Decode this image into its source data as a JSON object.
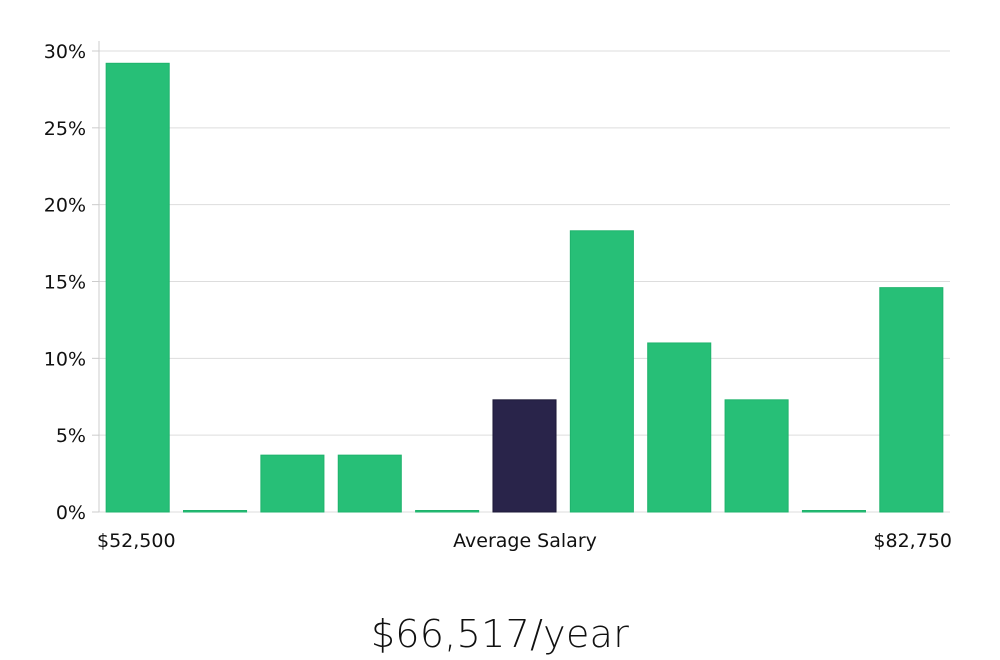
{
  "chart_data": {
    "type": "bar",
    "title": "",
    "xlabel": "",
    "ylabel": "",
    "ylim": [
      0,
      30
    ],
    "yticks": [
      0,
      5,
      10,
      15,
      20,
      25,
      30
    ],
    "ytick_labels": [
      "0%",
      "5%",
      "10%",
      "15%",
      "20%",
      "25%",
      "30%"
    ],
    "grid": true,
    "values": [
      29.2,
      0,
      3.7,
      3.7,
      0,
      7.3,
      18.3,
      11.0,
      7.3,
      0,
      14.6
    ],
    "highlight_index": 5,
    "x_labels": {
      "left": "$52,500",
      "center": "Average Salary",
      "right": "$82,750"
    }
  },
  "summary": {
    "average_salary": "$66,517/year"
  },
  "colors": {
    "bar": "#27bf77",
    "bar_edge": "#1fb36c",
    "highlight": "#29244a",
    "grid": "#dddddd",
    "axis": "#cccccc"
  }
}
